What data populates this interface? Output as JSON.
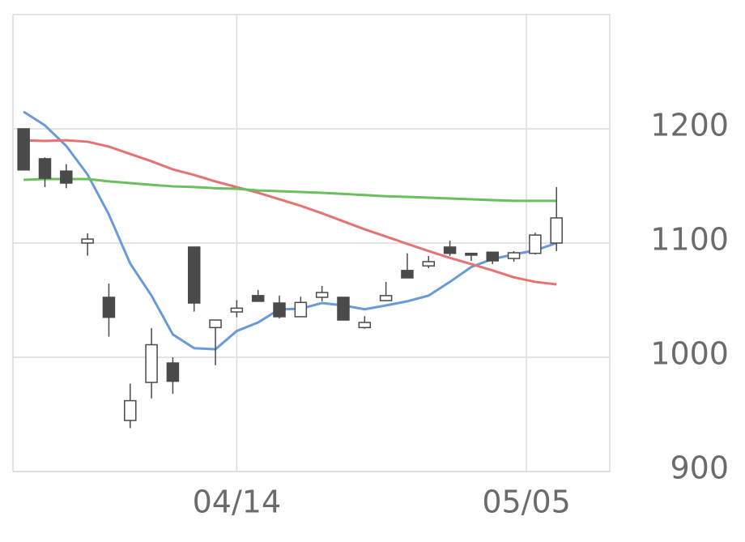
{
  "chart_data": {
    "type": "candlestick",
    "categories": [
      null,
      null,
      null,
      null,
      null,
      null,
      null,
      null,
      null,
      null,
      "04/14",
      null,
      null,
      null,
      null,
      null,
      null,
      null,
      null,
      null,
      null,
      null,
      null,
      null,
      null,
      null
    ],
    "open": [
      1200,
      1173.8,
      1163,
      1100,
      1052.5,
      944.7,
      978,
      995,
      1096.5,
      1026,
      1039.7,
      1054,
      1047.5,
      1035.5,
      1052.5,
      1052.5,
      1026,
      1049.6,
      1076,
      1080,
      1096.5,
      1091,
      1092,
      1086.5,
      1091,
      1100
    ],
    "high": [
      1200,
      1175,
      1169,
      1108.5,
      1064.5,
      977,
      1025.5,
      1000,
      1096.5,
      1032.6,
      1050,
      1059,
      1054,
      1053,
      1062.4,
      1052.5,
      1036,
      1066,
      1091,
      1088.7,
      1102,
      1091,
      1092,
      1093,
      1109,
      1149
    ],
    "low": [
      1164,
      1149,
      1148,
      1089,
      1018,
      938,
      964,
      968,
      1040,
      993,
      1035,
      1049,
      1034,
      1035.5,
      1049,
      1032.6,
      1025,
      1049,
      1069.5,
      1078,
      1088.7,
      1084.4,
      1081.6,
      1083.7,
      1090,
      1093
    ],
    "close": [
      1164,
      1156.7,
      1152.5,
      1103.5,
      1035,
      962,
      1011,
      979,
      1047.5,
      1032.6,
      1043,
      1049,
      1035.5,
      1048,
      1056.7,
      1032.6,
      1030.5,
      1054,
      1069.5,
      1083.7,
      1091,
      1089.4,
      1084.4,
      1091.5,
      1107,
      1122
    ],
    "up_color": "#ffffff",
    "down_color": "#4a4a4a",
    "candle_stroke": "#4a4a4a",
    "lines": [
      {
        "color": "#6a9bd8",
        "values": [
          1215,
          1203,
          1185,
          1160,
          1125,
          1082,
          1054,
          1020,
          1008,
          1007,
          1023,
          1030.5,
          1042,
          1042.5,
          1047.5,
          1045.4,
          1042,
          1045.4,
          1049,
          1054,
          1066,
          1079,
          1086,
          1090,
          1093.6,
          1100
        ]
      },
      {
        "color": "#e57373",
        "values": [
          1190,
          1189.4,
          1190,
          1188.7,
          1184.4,
          1178,
          1171.6,
          1164.5,
          1159.6,
          1153.9,
          1149,
          1144,
          1138.3,
          1132.6,
          1126,
          1119,
          1112,
          1105.7,
          1099.3,
          1093,
          1087,
          1081.6,
          1076,
          1070,
          1066,
          1063.8
        ]
      },
      {
        "color": "#6abf5e",
        "values": [
          1155.3,
          1156,
          1156,
          1156,
          1154,
          1152.5,
          1151,
          1149.6,
          1149,
          1148,
          1147.5,
          1146,
          1145.4,
          1144.7,
          1144,
          1143,
          1142,
          1141,
          1140.4,
          1139.7,
          1139,
          1138.3,
          1137.6,
          1137,
          1137,
          1137
        ]
      }
    ],
    "xlim": [
      -0.5,
      27.5
    ],
    "xticks": [
      {
        "value": 10,
        "label": "04/14"
      },
      {
        "value": 23.59,
        "label": "05/05"
      }
    ],
    "ylim": [
      900,
      1300
    ],
    "yticks": [
      900,
      1000,
      1100,
      1200
    ],
    "grid": true
  }
}
